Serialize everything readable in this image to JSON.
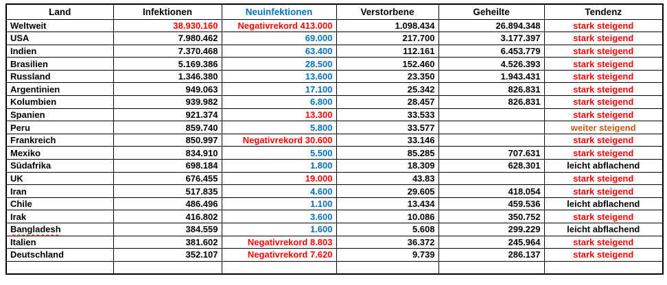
{
  "table": {
    "colors": {
      "red": "#FF0000",
      "blue": "#0070C0",
      "orange": "#C55A11",
      "black": "#000000"
    },
    "columns": [
      {
        "key": "land",
        "label": "Land",
        "align": "left",
        "header_color": "#000000"
      },
      {
        "key": "infektionen",
        "label": "Infektionen",
        "align": "right",
        "header_color": "#000000"
      },
      {
        "key": "neuinfektionen",
        "label": "Neuinfektionen",
        "align": "right",
        "header_color": "#0070C0"
      },
      {
        "key": "verstorbene",
        "label": "Verstorbene",
        "align": "right",
        "header_color": "#000000"
      },
      {
        "key": "geheilte",
        "label": "Geheilte",
        "align": "right",
        "header_color": "#000000"
      },
      {
        "key": "tendenz",
        "label": "Tendenz",
        "align": "center",
        "header_color": "#000000"
      }
    ],
    "rows": [
      {
        "land": "Weltweit",
        "infektionen": {
          "text": "38.930.160",
          "color": "red"
        },
        "neuinfektionen": {
          "text": "Negativrekord 413.000",
          "color": "red"
        },
        "verstorbene": "1.098.434",
        "geheilte": "26.894.348",
        "tendenz": {
          "text": "stark steigend",
          "color": "red"
        }
      },
      {
        "land": "USA",
        "infektionen": "7.980.462",
        "neuinfektionen": {
          "text": "69.000",
          "color": "blue"
        },
        "verstorbene": "217.700",
        "geheilte": "3.177.397",
        "tendenz": {
          "text": "stark steigend",
          "color": "red"
        }
      },
      {
        "land": "Indien",
        "infektionen": "7.370.468",
        "neuinfektionen": {
          "text": "63.400",
          "color": "blue"
        },
        "verstorbene": "112.161",
        "geheilte": "6.453.779",
        "tendenz": {
          "text": "stark steigend",
          "color": "red"
        }
      },
      {
        "land": "Brasilien",
        "infektionen": "5.169.386",
        "neuinfektionen": {
          "text": "28.500",
          "color": "blue"
        },
        "verstorbene": "152.460",
        "geheilte": "4.526.393",
        "tendenz": {
          "text": "stark steigend",
          "color": "red"
        }
      },
      {
        "land": "Russland",
        "infektionen": "1.346.380",
        "neuinfektionen": {
          "text": "13.600",
          "color": "blue"
        },
        "verstorbene": "23.350",
        "geheilte": "1.943.431",
        "tendenz": {
          "text": "stark steigend",
          "color": "red"
        }
      },
      {
        "land": "Argentinien",
        "infektionen": "949.063",
        "neuinfektionen": {
          "text": "17.100",
          "color": "blue"
        },
        "verstorbene": "25.342",
        "geheilte": "826.831",
        "tendenz": {
          "text": "stark steigend",
          "color": "red"
        }
      },
      {
        "land": "Kolumbien",
        "infektionen": "939.982",
        "neuinfektionen": {
          "text": "6.800",
          "color": "blue"
        },
        "verstorbene": "28.457",
        "geheilte": "826.831",
        "tendenz": {
          "text": "stark steigend",
          "color": "red"
        }
      },
      {
        "land": "Spanien",
        "infektionen": "921.374",
        "neuinfektionen": {
          "text": "13.300",
          "color": "red"
        },
        "verstorbene": "33.533",
        "geheilte": "",
        "tendenz": {
          "text": "stark steigend",
          "color": "red"
        }
      },
      {
        "land": "Peru",
        "infektionen": "859.740",
        "neuinfektionen": {
          "text": "5.800",
          "color": "blue"
        },
        "verstorbene": "33.577",
        "geheilte": "",
        "tendenz": {
          "text": "weiter steigend",
          "color": "orange"
        }
      },
      {
        "land": "Frankreich",
        "infektionen": "850.997",
        "neuinfektionen": {
          "text": "Negativrekord 30.600",
          "color": "red"
        },
        "verstorbene": "33.146",
        "geheilte": "",
        "tendenz": {
          "text": "stark steigend",
          "color": "red"
        }
      },
      {
        "land": "Mexiko",
        "infektionen": "834.910",
        "neuinfektionen": {
          "text": "5.500",
          "color": "blue"
        },
        "verstorbene": "85.285",
        "geheilte": "707.631",
        "tendenz": {
          "text": "stark steigend",
          "color": "red"
        }
      },
      {
        "land": "Südafrika",
        "infektionen": "698.184",
        "neuinfektionen": {
          "text": "1.800",
          "color": "blue"
        },
        "verstorbene": "18.309",
        "geheilte": "628.301",
        "tendenz": {
          "text": "leicht abflachend",
          "color": "black"
        }
      },
      {
        "land": "UK",
        "infektionen": "676.455",
        "neuinfektionen": {
          "text": "19.000",
          "color": "red"
        },
        "verstorbene": "43.83",
        "geheilte": "",
        "tendenz": {
          "text": "stark steigend",
          "color": "red"
        }
      },
      {
        "land": "Iran",
        "infektionen": "517.835",
        "neuinfektionen": {
          "text": "4.600",
          "color": "blue"
        },
        "verstorbene": "29.605",
        "geheilte": "418.054",
        "tendenz": {
          "text": "stark steigend",
          "color": "red"
        }
      },
      {
        "land": "Chile",
        "infektionen": "486.496",
        "neuinfektionen": {
          "text": "1.100",
          "color": "blue"
        },
        "verstorbene": "13.434",
        "geheilte": "459.536",
        "tendenz": {
          "text": "leicht abflachend",
          "color": "black"
        }
      },
      {
        "land": "Irak",
        "infektionen": "416.802",
        "neuinfektionen": {
          "text": "3.600",
          "color": "blue"
        },
        "verstorbene": "10.086",
        "geheilte": "350.752",
        "tendenz": {
          "text": "stark steigend",
          "color": "red"
        }
      },
      {
        "land": {
          "text": "Bangladesh",
          "misspelled": true
        },
        "infektionen": "384.559",
        "neuinfektionen": {
          "text": "1.600",
          "color": "blue"
        },
        "verstorbene": "5.608",
        "geheilte": "299.229",
        "tendenz": {
          "text": "leicht abflachend",
          "color": "black"
        }
      },
      {
        "land": "Italien",
        "infektionen": "381.602",
        "neuinfektionen": {
          "text": "Negativrekord 8.803",
          "color": "red"
        },
        "verstorbene": "36.372",
        "geheilte": "245.964",
        "tendenz": {
          "text": "stark steigend",
          "color": "red"
        }
      },
      {
        "land": "Deutschland",
        "infektionen": "352.107",
        "neuinfektionen": {
          "text": "Negativrekord 7.620",
          "color": "red"
        },
        "verstorbene": "9.739",
        "geheilte": "286.137",
        "tendenz": {
          "text": "stark steigend",
          "color": "red"
        }
      },
      {
        "land": "",
        "infektionen": "",
        "neuinfektionen": "",
        "verstorbene": "",
        "geheilte": "",
        "tendenz": ""
      }
    ]
  }
}
